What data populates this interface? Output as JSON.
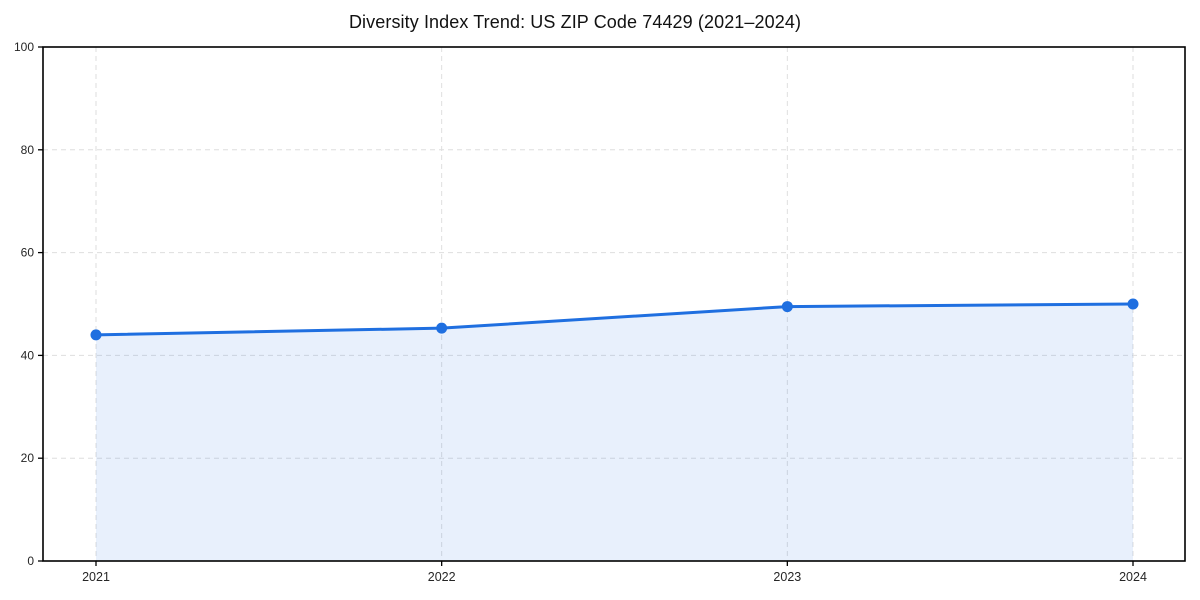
{
  "chart_data": {
    "type": "area",
    "title": "Diversity Index Trend: US ZIP Code 74429 (2021–2024)",
    "x": [
      "2021",
      "2022",
      "2023",
      "2024"
    ],
    "series": [
      {
        "name": "Diversity Index",
        "values": [
          44.0,
          45.3,
          49.5,
          50.0
        ]
      }
    ],
    "xlabel": "",
    "ylabel": "",
    "ylim": [
      0,
      100
    ],
    "yticks": [
      0,
      20,
      40,
      60,
      80,
      100
    ],
    "grid": true,
    "legend_position": "none",
    "colors": {
      "line": "#1f6fe0",
      "marker": "#1f6fe0",
      "fill": "rgba(31,111,224,0.10)",
      "grid": "#dedede",
      "axis": "#000000",
      "title_text": "#111111",
      "tick_text": "#262626"
    }
  }
}
